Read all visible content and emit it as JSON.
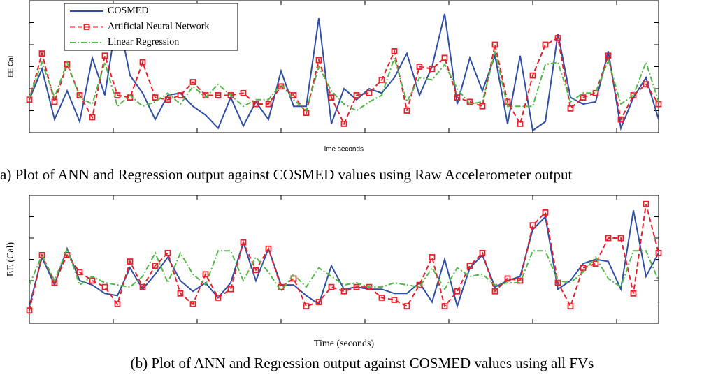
{
  "chart_data": [
    {
      "type": "line",
      "xlabel": "ime seconds",
      "ylabel": "EE  Cal",
      "caption": "a) Plot of ANN and Regression output against COSMED values using Raw Accelerometer output",
      "legend": "upper left",
      "xlim": [
        0,
        150
      ],
      "ylim": [
        0,
        6
      ],
      "xticks": [
        20,
        40,
        60,
        80,
        100,
        120,
        140
      ],
      "yticks": [
        1,
        2,
        3,
        4,
        5
      ],
      "x": [
        0,
        3,
        6,
        9,
        12,
        15,
        18,
        21,
        24,
        27,
        30,
        33,
        36,
        39,
        42,
        45,
        48,
        51,
        54,
        57,
        60,
        63,
        66,
        69,
        72,
        75,
        78,
        81,
        84,
        87,
        90,
        93,
        96,
        99,
        102,
        105,
        108,
        111,
        114,
        117,
        120,
        123,
        126,
        129,
        132,
        135,
        138,
        141,
        144,
        147,
        150
      ],
      "series": [
        {
          "name": "COSMED",
          "color": "#2e4fa3",
          "linestyle": "solid",
          "values": [
            1.5,
            2.9,
            0.6,
            1.9,
            0.5,
            3.4,
            1.7,
            5.4,
            2.6,
            1.8,
            0.6,
            1.7,
            1.8,
            1.2,
            0.8,
            0.2,
            1.6,
            0.3,
            1.4,
            0.6,
            2.8,
            1.2,
            1.2,
            5.2,
            0.4,
            2.0,
            1.5,
            2.0,
            1.8,
            2.5,
            3.6,
            1.7,
            3.0,
            5.4,
            1.3,
            3.4,
            1.9,
            3.5,
            0.4,
            3.5,
            0.1,
            0.5,
            4.5,
            1.6,
            1.3,
            1.4,
            3.7,
            0.2,
            1.6,
            2.5,
            0.6
          ]
        },
        {
          "name": "Artificial Neural Network",
          "color": "#e8202a",
          "linestyle": "dashed",
          "marker": "square",
          "values": [
            1.5,
            3.6,
            1.4,
            3.1,
            1.7,
            0.7,
            3.5,
            1.7,
            1.6,
            3.2,
            1.6,
            1.5,
            1.7,
            2.3,
            1.7,
            1.7,
            1.7,
            1.8,
            1.3,
            1.3,
            2.1,
            1.7,
            0.9,
            3.3,
            1.6,
            0.4,
            1.7,
            1.8,
            2.4,
            3.7,
            1.0,
            3.0,
            2.9,
            3.4,
            1.6,
            1.4,
            1.2,
            4.0,
            1.4,
            0.4,
            2.6,
            4.0,
            4.3,
            1.1,
            1.6,
            1.8,
            3.5,
            0.6,
            1.7,
            2.2,
            1.3
          ]
        },
        {
          "name": "Linear Regression",
          "color": "#52b848",
          "linestyle": "dashdot",
          "values": [
            1.6,
            3.2,
            1.6,
            3.2,
            1.6,
            1.3,
            3.2,
            1.2,
            1.7,
            1.2,
            1.4,
            1.8,
            1.3,
            2.1,
            1.6,
            2.2,
            1.7,
            1.2,
            1.5,
            1.5,
            2.2,
            1.5,
            1.0,
            3.0,
            1.9,
            1.3,
            1.0,
            1.4,
            1.7,
            3.4,
            1.4,
            2.5,
            2.4,
            3.1,
            2.0,
            1.3,
            1.4,
            3.7,
            1.2,
            1.2,
            1.2,
            3.1,
            3.2,
            1.4,
            1.8,
            1.8,
            3.3,
            1.3,
            1.7,
            3.2,
            1.4
          ]
        }
      ]
    },
    {
      "type": "line",
      "xlabel": "Time (seconds)",
      "ylabel": "EE (Cal)",
      "caption": "(b) Plot of ANN and Regression output against COSMED values using all FVs",
      "xlim": [
        0,
        150
      ],
      "ylim": [
        0,
        6
      ],
      "xticks": [
        20,
        40,
        60,
        80,
        100,
        120,
        140
      ],
      "yticks": [
        1,
        2,
        3,
        4,
        5
      ],
      "x": [
        0,
        3,
        6,
        9,
        12,
        15,
        18,
        21,
        24,
        27,
        30,
        33,
        36,
        39,
        42,
        45,
        48,
        51,
        54,
        57,
        60,
        63,
        66,
        69,
        72,
        75,
        78,
        81,
        84,
        87,
        90,
        93,
        96,
        99,
        102,
        105,
        108,
        111,
        114,
        117,
        120,
        123,
        126,
        129,
        132,
        135,
        138,
        141,
        144,
        147,
        150
      ],
      "series": [
        {
          "color": "#2e4fa3",
          "linestyle": "solid",
          "values": [
            0.8,
            3.1,
            1.8,
            3.5,
            2.0,
            1.8,
            1.4,
            1.3,
            2.6,
            1.6,
            2.3,
            3.1,
            2.0,
            1.5,
            1.9,
            1.2,
            1.9,
            3.8,
            2.0,
            3.5,
            1.8,
            1.8,
            1.3,
            0.9,
            2.7,
            1.6,
            1.7,
            1.6,
            1.6,
            1.4,
            1.4,
            1.9,
            1.0,
            3.0,
            0.8,
            2.6,
            3.2,
            1.7,
            2.0,
            2.2,
            4.4,
            5.0,
            1.6,
            2.0,
            2.8,
            3.0,
            2.9,
            1.6,
            5.3,
            2.2,
            3.3
          ]
        },
        {
          "color": "#e8202a",
          "linestyle": "dashed",
          "marker": "square",
          "values": [
            0.6,
            3.2,
            1.9,
            3.2,
            2.4,
            2.0,
            1.7,
            0.9,
            2.9,
            1.7,
            2.7,
            3.3,
            1.4,
            0.9,
            2.3,
            1.2,
            1.6,
            3.8,
            2.5,
            3.5,
            1.7,
            2.1,
            0.8,
            1.0,
            1.7,
            1.5,
            1.7,
            1.7,
            1.2,
            1.1,
            0.8,
            1.8,
            3.1,
            0.8,
            1.5,
            2.7,
            3.3,
            1.5,
            2.1,
            2.0,
            4.6,
            5.2,
            1.9,
            0.8,
            2.6,
            2.8,
            4.0,
            4.0,
            1.4,
            5.6,
            3.3
          ]
        },
        {
          "color": "#52b848",
          "linestyle": "dashdot",
          "values": [
            1.8,
            3.2,
            2.0,
            3.5,
            1.8,
            2.2,
            1.9,
            1.8,
            1.7,
            2.2,
            3.3,
            1.9,
            3.3,
            2.3,
            1.8,
            3.4,
            3.4,
            2.0,
            3.1,
            2.4,
            1.5,
            2.3,
            1.7,
            2.6,
            2.2,
            1.8,
            1.9,
            1.7,
            1.7,
            1.9,
            1.8,
            1.7,
            2.6,
            1.6,
            2.6,
            2.2,
            2.3,
            1.8,
            1.9,
            1.9,
            3.4,
            3.4,
            2.0,
            1.9,
            2.4,
            3.1,
            2.1,
            1.7,
            3.4,
            3.4,
            2.0
          ]
        }
      ]
    }
  ]
}
